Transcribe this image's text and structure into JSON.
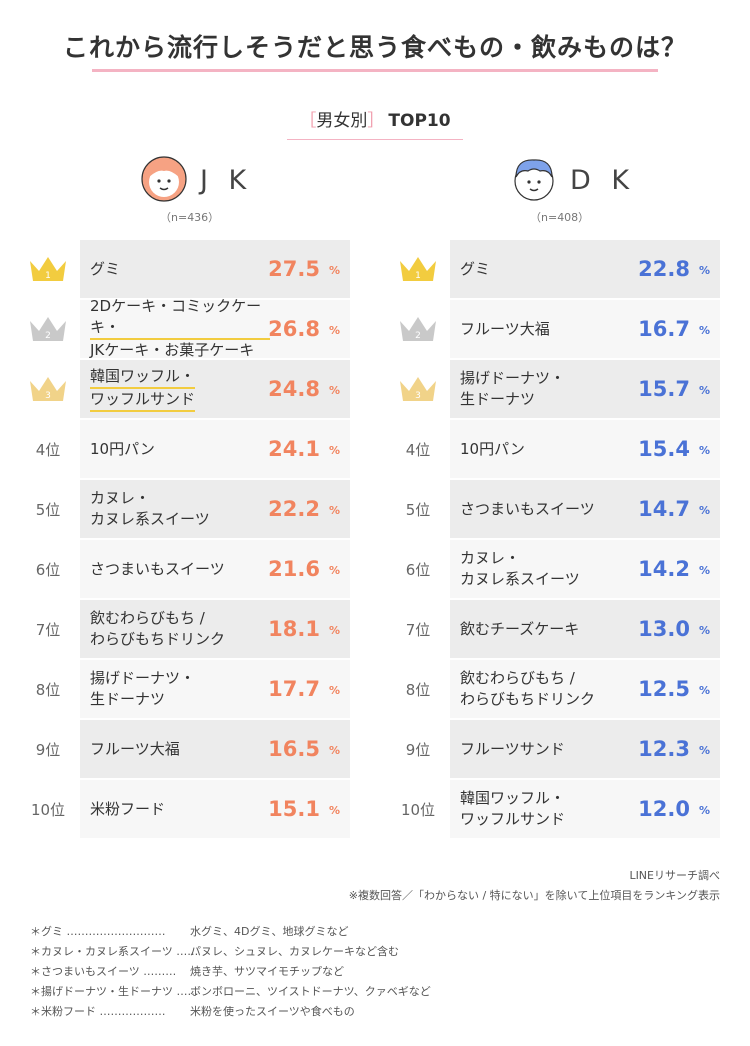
{
  "header": {
    "title": "これから流行しそうだと思う食べもの・飲みものは？",
    "subtitle_open": "［",
    "subtitle_main": "男女別",
    "subtitle_close": "］",
    "subtitle_rank": "TOP10"
  },
  "colors": {
    "jk_value": "#f1845f",
    "dk_value": "#4a72d6",
    "highlight": "#f2cc3f",
    "title_line": "#f4b3c3",
    "gold": "#f2cc3f",
    "silver": "#c9c9c9",
    "bronze": "#f1d389"
  },
  "groups": {
    "jk": {
      "label": "J K",
      "n": "（n=436）",
      "icon": "girl-face-icon"
    },
    "dk": {
      "label": "D K",
      "n": "（n=408）",
      "icon": "boy-face-icon"
    }
  },
  "chart_data": [
    {
      "type": "table",
      "group": "J K",
      "unit": "%",
      "ranks": [
        "1",
        "2",
        "3",
        "4位",
        "5位",
        "6位",
        "7位",
        "8位",
        "9位",
        "10位"
      ],
      "items": [
        [
          "グミ"
        ],
        [
          "2Dケーキ・コミックケーキ・",
          "JKケーキ・お菓子ケーキ"
        ],
        [
          "韓国ワッフル・",
          "ワッフルサンド"
        ],
        [
          "10円パン"
        ],
        [
          "カヌレ・",
          "カヌレ系スイーツ"
        ],
        [
          "さつまいもスイーツ"
        ],
        [
          "飲むわらびもち /",
          "わらびもちドリンク"
        ],
        [
          "揚げドーナツ・",
          "生ドーナツ"
        ],
        [
          "フルーツ大福"
        ],
        [
          "米粉フード"
        ]
      ],
      "values": [
        "27.5",
        "26.8",
        "24.8",
        "24.1",
        "22.2",
        "21.6",
        "18.1",
        "17.7",
        "16.5",
        "15.1"
      ]
    },
    {
      "type": "table",
      "group": "D K",
      "unit": "%",
      "ranks": [
        "1",
        "2",
        "3",
        "4位",
        "5位",
        "6位",
        "7位",
        "8位",
        "9位",
        "10位"
      ],
      "items": [
        [
          "グミ"
        ],
        [
          "フルーツ大福"
        ],
        [
          "揚げドーナツ・",
          "生ドーナツ"
        ],
        [
          "10円パン"
        ],
        [
          "さつまいもスイーツ"
        ],
        [
          "カヌレ・",
          "カヌレ系スイーツ"
        ],
        [
          "飲むチーズケーキ"
        ],
        [
          "飲むわらびもち /",
          "わらびもちドリンク"
        ],
        [
          "フルーツサンド"
        ],
        [
          "韓国ワッフル・",
          "ワッフルサンド"
        ]
      ],
      "values": [
        "22.8",
        "16.7",
        "15.7",
        "15.4",
        "14.7",
        "14.2",
        "13.0",
        "12.5",
        "12.3",
        "12.0"
      ]
    }
  ],
  "footer": {
    "source": "LINEリサーチ調べ",
    "method": "※複数回答／「わからない / 特にない」を除いて上位項目をランキング表示",
    "notes": [
      {
        "term": "＊グミ ………………………",
        "desc": "水グミ、4Dグミ、地球グミなど"
      },
      {
        "term": "＊カヌレ・カヌレ系スイーツ ……",
        "desc": "パヌレ、シュヌレ、カヌレケーキなど含む"
      },
      {
        "term": "＊さつまいもスイーツ ………",
        "desc": "焼き芋、サツマイモチップなど"
      },
      {
        "term": "＊揚げドーナツ・生ドーナツ ……",
        "desc": "ボンボローニ、ツイストドーナツ、クァベギなど"
      },
      {
        "term": "＊米粉フード ………………",
        "desc": "米粉を使ったスイーツや食べもの"
      }
    ]
  }
}
